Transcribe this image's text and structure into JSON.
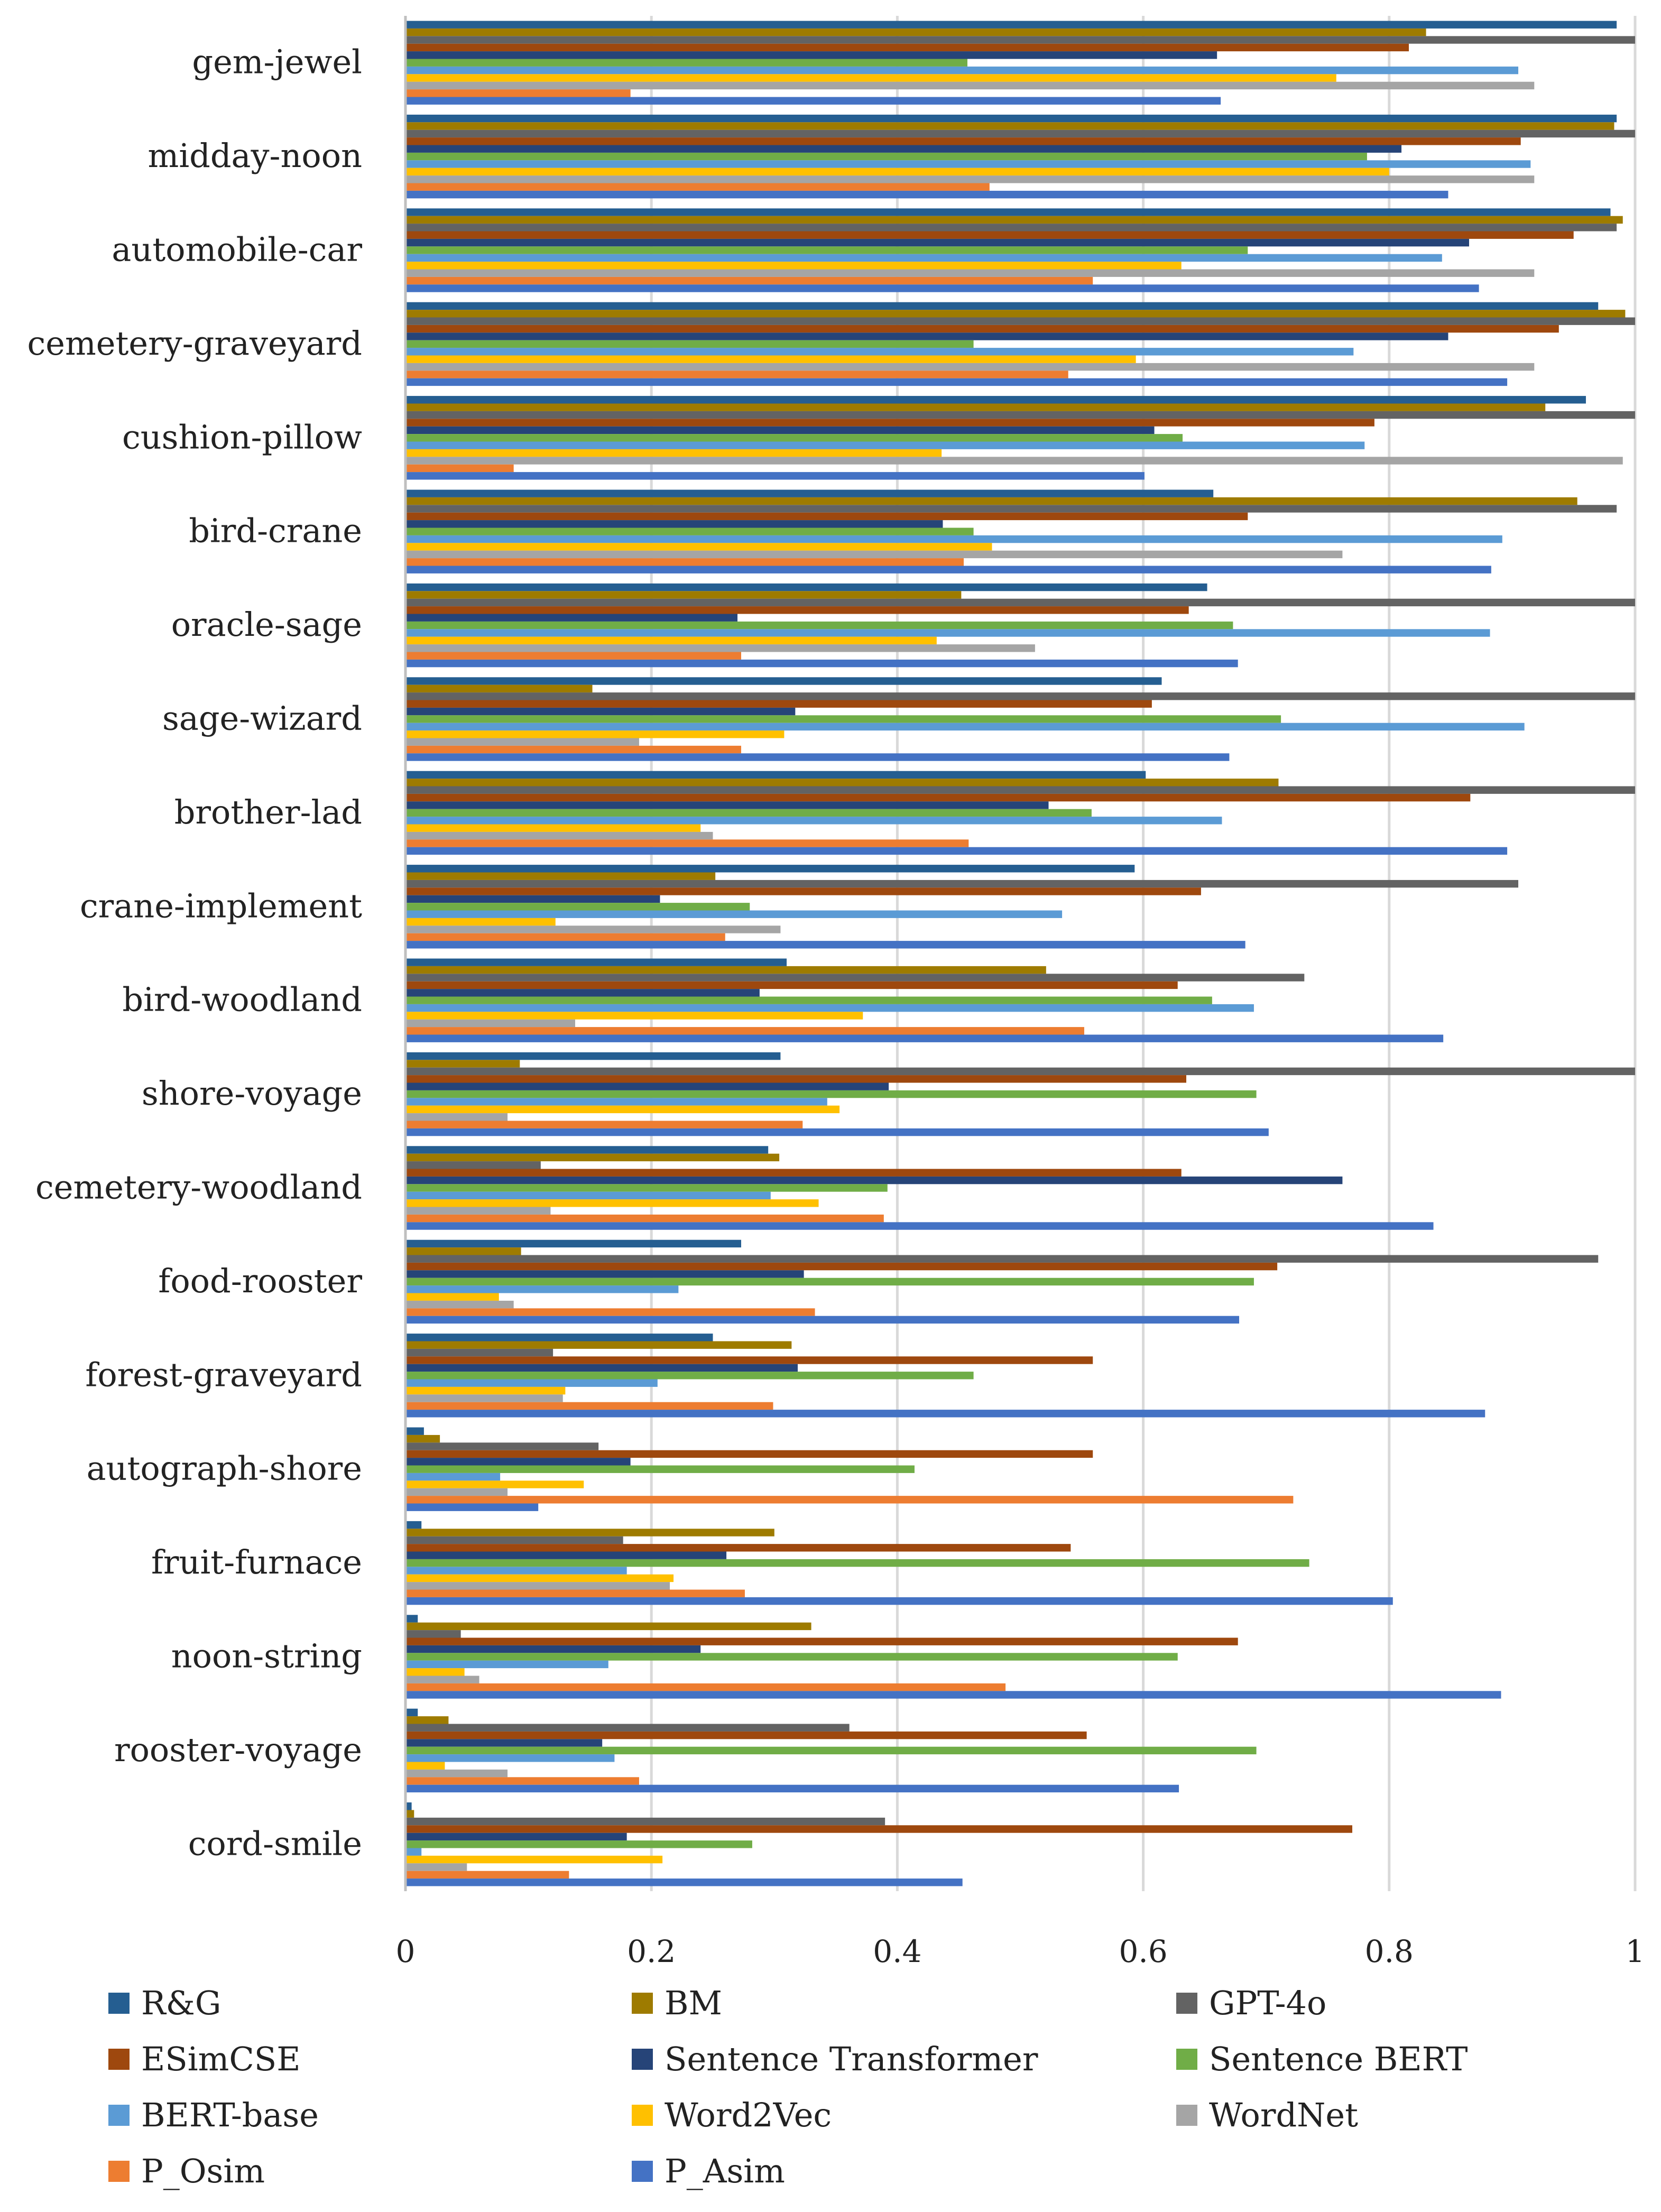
{
  "chart_data": {
    "type": "bar",
    "orientation": "horizontal",
    "title": "",
    "xlabel": "",
    "ylabel": "",
    "xlim": [
      0,
      1
    ],
    "xticks": [
      "0",
      "0.2",
      "0.4",
      "0.6",
      "0.8",
      "1"
    ],
    "grid": true,
    "legend_position": "bottom",
    "categories": [
      "gem-jewel",
      "midday-noon",
      "automobile-car",
      "cemetery-graveyard",
      "cushion-pillow",
      "bird-crane",
      "oracle-sage",
      "sage-wizard",
      "brother-lad",
      "crane-implement",
      "bird-woodland",
      "shore-voyage",
      "cemetery-woodland",
      "food-rooster",
      "forest-graveyard",
      "autograph-shore",
      "fruit-furnace",
      "noon-string",
      "rooster-voyage",
      "cord-smile"
    ],
    "series": [
      {
        "name": "R&G",
        "color": "#255E91",
        "values": [
          0.985,
          0.985,
          0.98,
          0.97,
          0.96,
          0.657,
          0.652,
          0.615,
          0.602,
          0.593,
          0.31,
          0.305,
          0.295,
          0.273,
          0.25,
          0.015,
          0.013,
          0.01,
          0.01,
          0.005
        ]
      },
      {
        "name": "BM",
        "color": "#9E7B00",
        "values": [
          0.83,
          0.983,
          0.99,
          0.992,
          0.927,
          0.953,
          0.452,
          0.152,
          0.71,
          0.252,
          0.521,
          0.093,
          0.304,
          0.094,
          0.314,
          0.028,
          0.3,
          0.33,
          0.035,
          0.007
        ]
      },
      {
        "name": "GPT-4o",
        "color": "#636363",
        "values": [
          1.0,
          1.0,
          0.985,
          1.0,
          1.0,
          0.985,
          1.0,
          1.0,
          1.0,
          0.905,
          0.731,
          1.0,
          0.11,
          0.97,
          0.12,
          0.157,
          0.177,
          0.045,
          0.361,
          0.39
        ]
      },
      {
        "name": "ESimCSE",
        "color": "#9E480E",
        "values": [
          0.816,
          0.907,
          0.95,
          0.938,
          0.788,
          0.685,
          0.637,
          0.607,
          0.866,
          0.647,
          0.628,
          0.635,
          0.631,
          0.709,
          0.559,
          0.559,
          0.541,
          0.677,
          0.554,
          0.77
        ]
      },
      {
        "name": "Sentence Transformer",
        "color": "#264478",
        "values": [
          0.66,
          0.81,
          0.865,
          0.848,
          0.609,
          0.437,
          0.27,
          0.317,
          0.523,
          0.207,
          0.288,
          0.393,
          0.762,
          0.324,
          0.319,
          0.183,
          0.261,
          0.24,
          0.16,
          0.18
        ]
      },
      {
        "name": "Sentence BERT",
        "color": "#70AD47",
        "values": [
          0.457,
          0.782,
          0.685,
          0.462,
          0.632,
          0.462,
          0.673,
          0.712,
          0.558,
          0.28,
          0.656,
          0.692,
          0.392,
          0.69,
          0.462,
          0.414,
          0.735,
          0.628,
          0.692,
          0.282
        ]
      },
      {
        "name": "BERT-base",
        "color": "#5B9BD5",
        "values": [
          0.905,
          0.915,
          0.843,
          0.771,
          0.78,
          0.892,
          0.882,
          0.91,
          0.664,
          0.534,
          0.69,
          0.343,
          0.297,
          0.222,
          0.205,
          0.077,
          0.18,
          0.165,
          0.17,
          0.013
        ]
      },
      {
        "name": "Word2Vec",
        "color": "#FFC000",
        "values": [
          0.757,
          0.8,
          0.631,
          0.594,
          0.436,
          0.477,
          0.432,
          0.308,
          0.24,
          0.122,
          0.372,
          0.353,
          0.336,
          0.076,
          0.13,
          0.145,
          0.218,
          0.048,
          0.032,
          0.209
        ]
      },
      {
        "name": "WordNet",
        "color": "#A5A5A5",
        "values": [
          0.918,
          0.918,
          0.918,
          0.918,
          0.99,
          0.762,
          0.512,
          0.19,
          0.25,
          0.305,
          0.138,
          0.083,
          0.118,
          0.088,
          0.128,
          0.083,
          0.215,
          0.06,
          0.083,
          0.05
        ]
      },
      {
        "name": "P_Osim",
        "color": "#ED7D31",
        "values": [
          0.183,
          0.475,
          0.559,
          0.539,
          0.088,
          0.454,
          0.273,
          0.273,
          0.458,
          0.26,
          0.552,
          0.323,
          0.389,
          0.333,
          0.299,
          0.722,
          0.276,
          0.488,
          0.19,
          0.133
        ]
      },
      {
        "name": "P_Asim",
        "color": "#4472C4",
        "values": [
          0.663,
          0.848,
          0.873,
          0.896,
          0.601,
          0.883,
          0.677,
          0.67,
          0.896,
          0.683,
          0.844,
          0.702,
          0.836,
          0.678,
          0.878,
          0.108,
          0.803,
          0.891,
          0.629,
          0.453
        ]
      }
    ]
  }
}
